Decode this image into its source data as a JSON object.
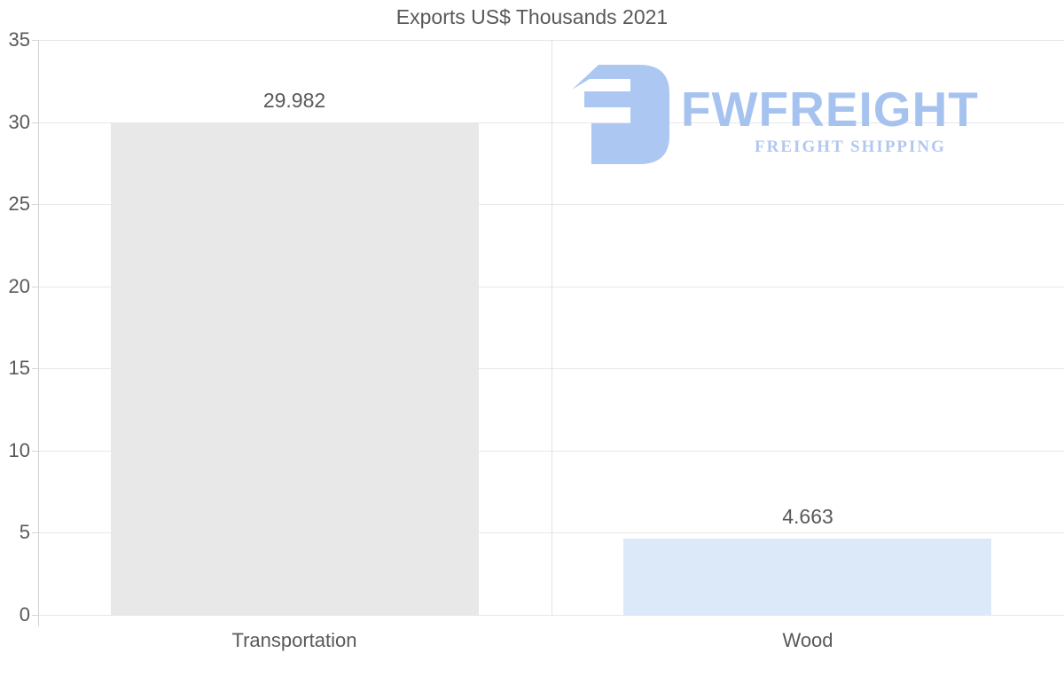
{
  "chart_data": {
    "type": "bar",
    "title": "Exports US$ Thousands 2021",
    "categories": [
      "Transportation",
      "Wood"
    ],
    "values": [
      29.982,
      4.663
    ],
    "value_labels": [
      "29.982",
      "4.663"
    ],
    "bar_colors": [
      "#e8e8e8",
      "#dce9f9"
    ],
    "ylim": [
      0,
      35
    ],
    "yticks": [
      0,
      5,
      10,
      15,
      20,
      25,
      30,
      35
    ],
    "xlabel": "",
    "ylabel": "",
    "legend": "none",
    "grid": "horizontal gridlines with vertical category divider"
  },
  "watermark": {
    "brand": "FWFREIGHT",
    "tagline": "FREIGHT SHIPPING",
    "logo_icon": "fwfreight-monogram-icon",
    "mark_color": "#abc7f2",
    "brand_color": "#a6c3f0",
    "tagline_color": "#b2c7ef"
  },
  "colors": {
    "background": "#ffffff",
    "text": "#595959",
    "gridline": "#e7e7e7",
    "category_divider": "#e3e3e3",
    "axis_line": "#d2d2d2"
  }
}
